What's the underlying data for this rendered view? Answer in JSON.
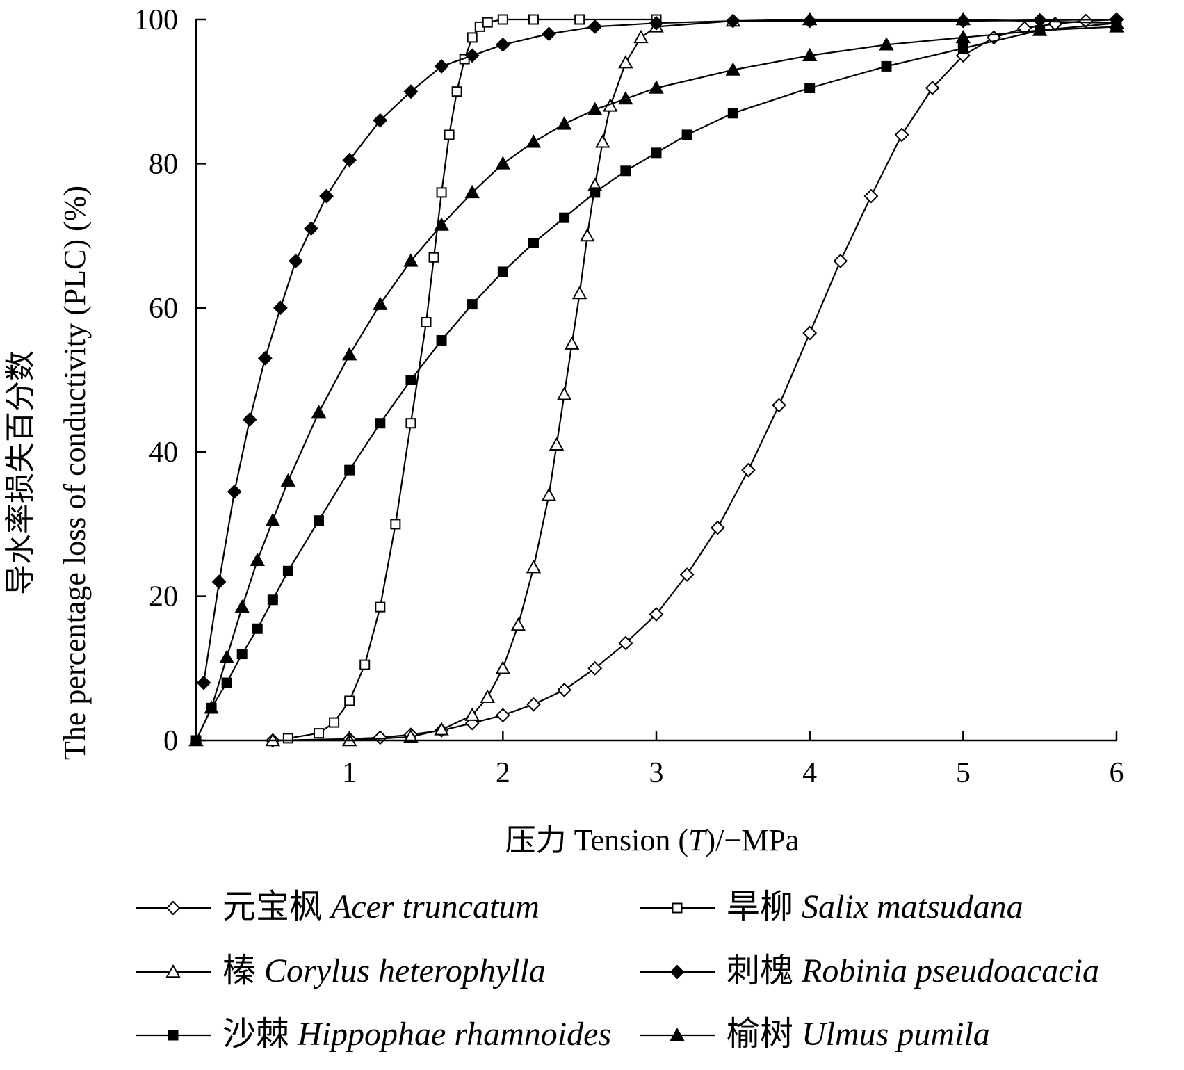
{
  "chart_data": {
    "type": "line",
    "title": "",
    "ylabel_cn": "导水率损失百分数",
    "ylabel_en": "The percentage loss of conductivity (PLC) (%)",
    "xlabel_cn": "压力",
    "xlabel_en": "Tension (",
    "xlabel_var": "T",
    "xlabel_unit": ")/−MPa",
    "xlim": [
      0,
      6
    ],
    "ylim": [
      0,
      100
    ],
    "xticks": [
      1,
      2,
      3,
      4,
      5,
      6
    ],
    "yticks": [
      0,
      20,
      40,
      60,
      80,
      100
    ],
    "grid": false,
    "legend_position": "bottom",
    "series": [
      {
        "name_cn": "元宝枫",
        "name_latin": "Acer truncatum",
        "marker": "diamond-open",
        "x": [
          0.5,
          1.0,
          1.2,
          1.4,
          1.6,
          1.8,
          2.0,
          2.2,
          2.4,
          2.6,
          2.8,
          3.0,
          3.2,
          3.4,
          3.6,
          3.8,
          4.0,
          4.2,
          4.4,
          4.6,
          4.8,
          5.0,
          5.2,
          5.4,
          5.6,
          5.8,
          6.0
        ],
        "y": [
          0,
          0.2,
          0.4,
          0.8,
          1.4,
          2.4,
          3.5,
          5.0,
          7.0,
          10.0,
          13.5,
          17.5,
          23.0,
          29.5,
          37.5,
          46.5,
          56.5,
          66.5,
          75.5,
          84.0,
          90.5,
          95.0,
          97.5,
          98.8,
          99.4,
          99.8,
          100
        ]
      },
      {
        "name_cn": "旱柳",
        "name_latin": "Salix matsudana",
        "marker": "square-open",
        "x": [
          0.6,
          0.8,
          0.9,
          1.0,
          1.1,
          1.2,
          1.3,
          1.4,
          1.5,
          1.55,
          1.6,
          1.65,
          1.7,
          1.75,
          1.8,
          1.85,
          1.9,
          2.0,
          2.2,
          2.5,
          3.0
        ],
        "y": [
          0.3,
          1.0,
          2.5,
          5.5,
          10.5,
          18.5,
          30.0,
          44.0,
          58.0,
          67.0,
          76.0,
          84.0,
          90.0,
          94.5,
          97.5,
          99.0,
          99.6,
          100,
          100,
          100,
          100
        ]
      },
      {
        "name_cn": "榛",
        "name_latin": "Corylus heterophylla",
        "marker": "triangle-open",
        "x": [
          0.5,
          1.0,
          1.4,
          1.6,
          1.8,
          1.9,
          2.0,
          2.1,
          2.2,
          2.3,
          2.35,
          2.4,
          2.45,
          2.5,
          2.55,
          2.6,
          2.65,
          2.7,
          2.8,
          2.9,
          3.0,
          3.5,
          4.0,
          5.0,
          6.0
        ],
        "y": [
          0,
          0,
          0.5,
          1.5,
          3.5,
          6.0,
          10.0,
          16.0,
          24.0,
          34.0,
          41.0,
          48.0,
          55.0,
          62.0,
          70.0,
          77.0,
          83.0,
          88.0,
          94.0,
          97.5,
          99.0,
          99.8,
          100,
          100,
          99.5
        ]
      },
      {
        "name_cn": "刺槐",
        "name_latin": "Robinia pseudoacacia",
        "marker": "diamond-filled",
        "x": [
          0.05,
          0.15,
          0.25,
          0.35,
          0.45,
          0.55,
          0.65,
          0.75,
          0.85,
          1.0,
          1.2,
          1.4,
          1.6,
          1.8,
          2.0,
          2.3,
          2.6,
          3.0,
          3.5,
          4.0,
          5.0,
          5.5,
          6.0
        ],
        "y": [
          8,
          22,
          34.5,
          44.5,
          53,
          60,
          66.5,
          71,
          75.5,
          80.5,
          86,
          90,
          93.5,
          95,
          96.5,
          98,
          99,
          99.5,
          99.8,
          99.8,
          99.8,
          99.9,
          100
        ]
      },
      {
        "name_cn": "沙棘",
        "name_latin": "Hippophae rhamnoides",
        "marker": "square-filled",
        "x": [
          0,
          0.1,
          0.2,
          0.3,
          0.4,
          0.5,
          0.6,
          0.8,
          1.0,
          1.2,
          1.4,
          1.6,
          1.8,
          2.0,
          2.2,
          2.4,
          2.6,
          2.8,
          3.0,
          3.2,
          3.5,
          4.0,
          4.5,
          5.0,
          5.5,
          6.0
        ],
        "y": [
          0,
          4.5,
          8,
          12,
          15.5,
          19.5,
          23.5,
          30.5,
          37.5,
          44,
          50,
          55.5,
          60.5,
          65,
          69,
          72.5,
          76,
          79,
          81.5,
          84,
          87,
          90.5,
          93.5,
          96,
          98.5,
          99.5
        ]
      },
      {
        "name_cn": "榆树",
        "name_latin": "Ulmus pumila",
        "marker": "triangle-filled",
        "x": [
          0,
          0.1,
          0.2,
          0.3,
          0.4,
          0.5,
          0.6,
          0.8,
          1.0,
          1.2,
          1.4,
          1.6,
          1.8,
          2.0,
          2.2,
          2.4,
          2.6,
          2.8,
          3.0,
          3.5,
          4.0,
          4.5,
          5.0,
          5.5,
          6.0
        ],
        "y": [
          0,
          4.5,
          11.5,
          18.5,
          25,
          30.5,
          36,
          45.5,
          53.5,
          60.5,
          66.5,
          71.5,
          76,
          80,
          83,
          85.5,
          87.5,
          89,
          90.5,
          93,
          95,
          96.5,
          97.5,
          98.5,
          99.0
        ]
      }
    ]
  }
}
